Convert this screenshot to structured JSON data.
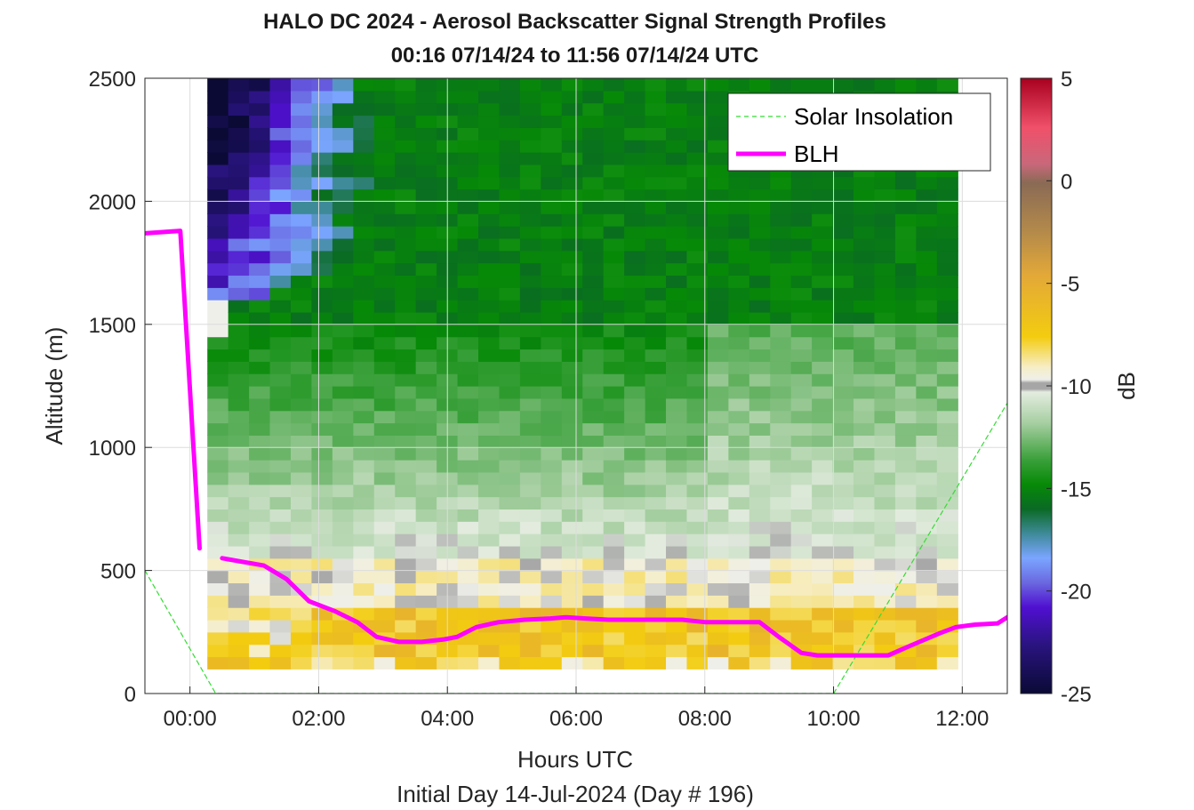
{
  "chart_data": {
    "type": "heatmap",
    "title": "HALO DC 2024 - Aerosol Backscatter Signal Strength Profiles",
    "subtitle": "00:16 07/14/24 to 11:56 07/14/24  UTC",
    "xlabel": "Hours UTC",
    "xlabel2": "Initial Day 14-Jul-2024 (Day # 196)",
    "ylabel": "Altitude (m)",
    "colorbar_label": "dB",
    "xlim": [
      -0.7,
      12.7
    ],
    "ylim": [
      0,
      2500
    ],
    "clim": [
      -25,
      5
    ],
    "x_ticks": [
      {
        "value": 0,
        "label": "00:00"
      },
      {
        "value": 2,
        "label": "02:00"
      },
      {
        "value": 4,
        "label": "04:00"
      },
      {
        "value": 6,
        "label": "06:00"
      },
      {
        "value": 8,
        "label": "08:00"
      },
      {
        "value": 10,
        "label": "10:00"
      },
      {
        "value": 12,
        "label": "12:00"
      }
    ],
    "y_ticks": [
      0,
      500,
      1000,
      1500,
      2000,
      2500
    ],
    "colorbar_ticks": [
      5,
      0,
      -5,
      -10,
      -15,
      -20,
      -25
    ],
    "grid": true,
    "legend_position": "top-right",
    "heatmap_x_range": [
      0.27,
      11.93
    ],
    "heatmap_y_range": [
      100,
      2500
    ],
    "series": [
      {
        "name": "Solar Insolation",
        "style": "dashed",
        "color": "#33dd33",
        "x": [
          -0.7,
          0.4,
          10.0,
          12.7
        ],
        "y": [
          500,
          0,
          0,
          1180
        ]
      },
      {
        "name": "BLH",
        "style": "solid",
        "color": "#ff00ff",
        "segments": [
          {
            "x": [
              -0.7,
              -0.15,
              0.15
            ],
            "y": [
              1870,
              1880,
              590
            ]
          },
          {
            "x": [
              0.5,
              1.15,
              1.5,
              1.85,
              2.25,
              2.6,
              2.9,
              3.25,
              3.6,
              3.95,
              4.15,
              4.45,
              4.8,
              5.2,
              5.6,
              5.85,
              6.15,
              6.5,
              7.0,
              7.35,
              7.65,
              8.0,
              8.35,
              8.85,
              9.15,
              9.5,
              9.75,
              10.15,
              10.45,
              10.85,
              11.2,
              11.65,
              11.9,
              12.2,
              12.55,
              12.7
            ],
            "y": [
              550,
              520,
              465,
              375,
              335,
              290,
              230,
              210,
              210,
              220,
              230,
              270,
              290,
              300,
              305,
              310,
              305,
              300,
              300,
              300,
              300,
              290,
              290,
              290,
              230,
              165,
              155,
              155,
              155,
              155,
              195,
              245,
              270,
              280,
              285,
              310
            ]
          }
        ]
      }
    ]
  }
}
